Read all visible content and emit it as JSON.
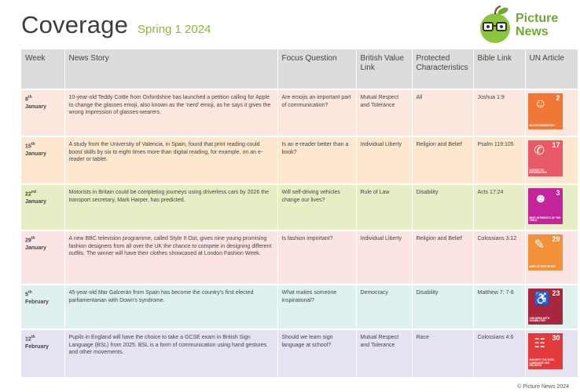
{
  "header": {
    "title": "Coverage",
    "subtitle": "Spring 1 2024"
  },
  "logo": {
    "line1": "Picture",
    "line2": "News"
  },
  "columns": [
    "Week",
    "News Story",
    "Focus Question",
    "British Value Link",
    "Protected Characteristics",
    "Bible Link",
    "UN Article"
  ],
  "rows": [
    {
      "week_day": "8",
      "week_suffix": "th",
      "week_month": "January",
      "story": "10-year-old Teddy Cottle from Oxfordshire has launched a petition calling for Apple to change the glasses emoji, also known as the ‘nerd’ emoji, as he says it gives the wrong impression of glasses-wearers.",
      "question": "Are emojis an important part of communication?",
      "value": "Mutual Respect and Tolerance",
      "protected": "All",
      "bible": "Joshua 1:9",
      "un": {
        "number": "2",
        "caption": "No Discrimination",
        "color": "#f07837",
        "icon": "people-icon"
      }
    },
    {
      "week_day": "15",
      "week_suffix": "th",
      "week_month": "January",
      "story": "A study from the University of Valencia, in Spain, found that print reading could boost skills by six to eight times more than digital reading, for example, on an e-reader or tablet.",
      "question": "Is an e-reader better than a book?",
      "value": "Individual Liberty",
      "protected": "Religion and Belief",
      "bible": "Psalm 119:105",
      "un": {
        "number": "17",
        "caption": "Access to Information",
        "color": "#e85a6a",
        "icon": "satellite-icon"
      }
    },
    {
      "week_day": "22",
      "week_suffix": "nd",
      "week_month": "January",
      "story": "Motorists in Britain could be completing journeys using driverless cars by 2026 the transport secretary, Mark Harper, has predicted.",
      "question": "Will self-driving vehicles change our lives?",
      "value": "Rule of Law",
      "protected": "Disability",
      "bible": "Acts 17:24",
      "un": {
        "number": "3",
        "caption": "Best Interests of the Child",
        "color": "#c2269a",
        "icon": "child-icon"
      }
    },
    {
      "week_day": "29",
      "week_suffix": "th",
      "week_month": "January",
      "story": "A new BBC television programme, called Style It Out, gives nine young promising fashion designers from all over the UK the chance to compete in designing different outfits. The winner will have their clothes showcased at London Fashion Week.",
      "question": "Is fashion important?",
      "value": "Individual Liberty",
      "protected": "Religion and Belief",
      "bible": "Colossians 3:12",
      "un": {
        "number": "29",
        "caption": "Aims of Education",
        "color": "#f3913b",
        "icon": "graduate-icon"
      }
    },
    {
      "week_day": "5",
      "week_suffix": "th",
      "week_month": "February",
      "story": "45-year-old Mar Galcerán from Spain has become the country’s first elected parliamentarian with Down’s syndrome.",
      "question": "What makes someone inspirational?",
      "value": "Democracy",
      "protected": "Disability",
      "bible": "Matthew 7: 7-8",
      "un": {
        "number": "23",
        "caption": "Children with Disabilities",
        "color": "#a8273f",
        "icon": "wheelchair-icon"
      }
    },
    {
      "week_day": "12",
      "week_suffix": "th",
      "week_month": "February",
      "story": "Pupils in England will have the choice to take a GCSE exam in British Sign Language (BSL) from 2025. BSL is a form of communication using hand gestures and other movements.",
      "question": "Should we learn sign language at school?",
      "value": "Mutual Respect and Tolerance",
      "protected": "Race",
      "bible": "Colossians 4:6",
      "un": {
        "number": "30",
        "caption": "Minority Culture, Language and Religion",
        "color": "#e23b3b",
        "icon": "group-icon"
      }
    }
  ],
  "footer": "© Picture News 2024",
  "colors": {
    "accent": "#8cb63c",
    "header_bg": "#dcdcdc"
  }
}
